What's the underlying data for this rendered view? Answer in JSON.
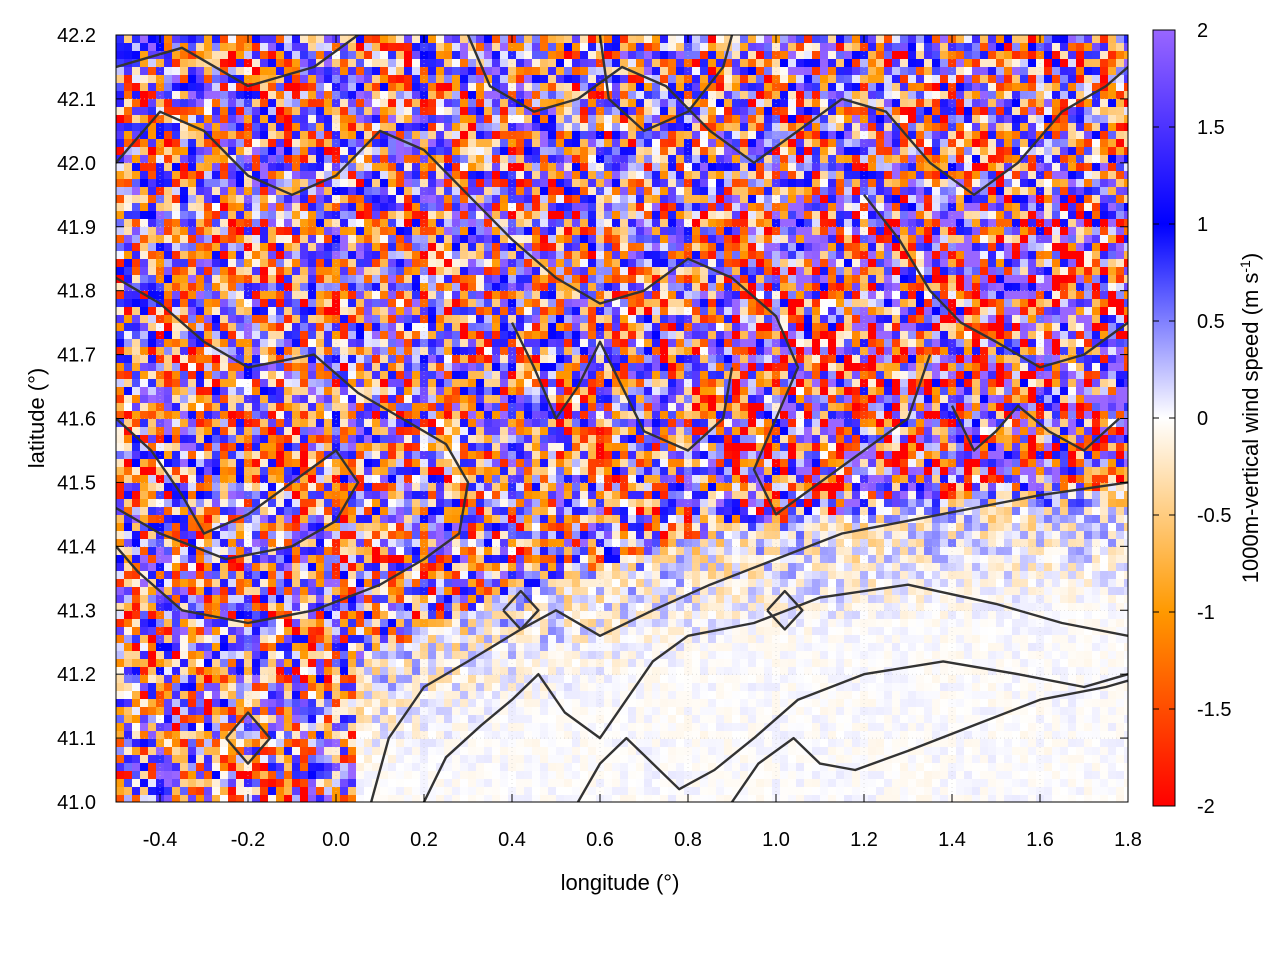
{
  "chart_data": {
    "type": "heatmap",
    "xlabel": "longitude (°)",
    "ylabel": "latitude (°)",
    "colorbar_label": "1000m-vertical wind speed (m s",
    "colorbar_label_sup": "-1",
    "colorbar_label_end": ")",
    "xlim": [
      -0.5,
      1.8
    ],
    "ylim": [
      41.0,
      42.2
    ],
    "clim": [
      -2,
      2
    ],
    "x_ticks": [
      "-0.4",
      "-0.2",
      "0.0",
      "0.2",
      "0.4",
      "0.6",
      "0.8",
      "1.0",
      "1.2",
      "1.4",
      "1.6",
      "1.8"
    ],
    "x_tick_values": [
      -0.4,
      -0.2,
      0.0,
      0.2,
      0.4,
      0.6,
      0.8,
      1.0,
      1.2,
      1.4,
      1.6,
      1.8
    ],
    "y_ticks": [
      "41.0",
      "41.1",
      "41.2",
      "41.3",
      "41.4",
      "41.5",
      "41.6",
      "41.7",
      "41.8",
      "41.9",
      "42.0",
      "42.1",
      "42.2"
    ],
    "y_tick_values": [
      41.0,
      41.1,
      41.2,
      41.3,
      41.4,
      41.5,
      41.6,
      41.7,
      41.8,
      41.9,
      42.0,
      42.1,
      42.2
    ],
    "colorbar_ticks": [
      "2",
      "1.5",
      "1",
      "0.5",
      "0",
      "-0.5",
      "-1",
      "-1.5",
      "-2"
    ],
    "colorbar_tick_values": [
      2,
      1.5,
      1,
      0.5,
      0,
      -0.5,
      -1,
      -1.5,
      -2
    ],
    "colormap": [
      "#ff0000",
      "#ff9900",
      "#ffffff",
      "#0000ff",
      "#9966ff"
    ],
    "contour_color": "#333333",
    "grid": true,
    "calm_region": "sea (south-east, near-zero vertical wind)"
  }
}
